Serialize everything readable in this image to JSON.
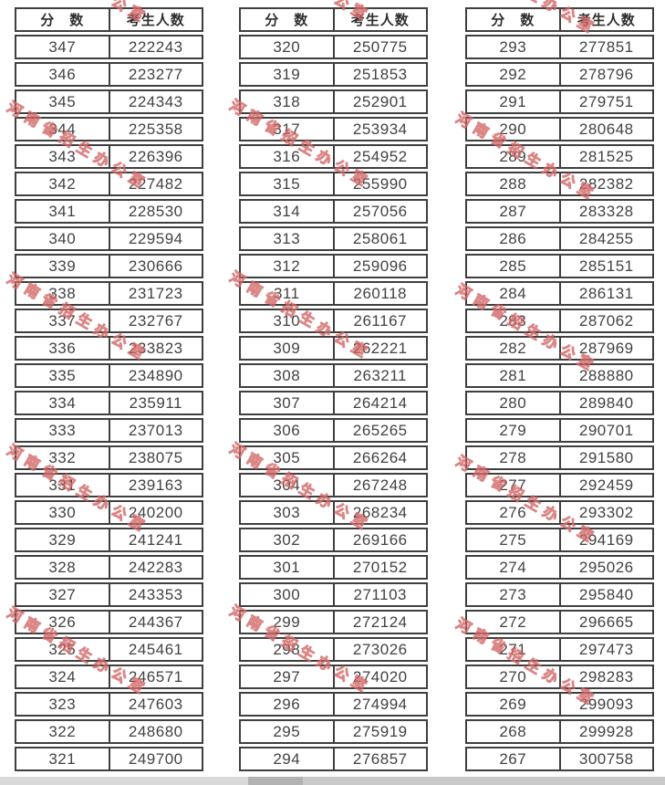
{
  "watermark": {
    "text": "河南省招生办公室"
  },
  "tables": [
    {
      "headers": {
        "score": "分　数",
        "count": "考生人数"
      },
      "rows": [
        [
          "347",
          "222243"
        ],
        [
          "346",
          "223277"
        ],
        [
          "345",
          "224343"
        ],
        [
          "344",
          "225358"
        ],
        [
          "343",
          "226396"
        ],
        [
          "342",
          "227482"
        ],
        [
          "341",
          "228530"
        ],
        [
          "340",
          "229594"
        ],
        [
          "339",
          "230666"
        ],
        [
          "338",
          "231723"
        ],
        [
          "337",
          "232767"
        ],
        [
          "336",
          "233823"
        ],
        [
          "335",
          "234890"
        ],
        [
          "334",
          "235911"
        ],
        [
          "333",
          "237013"
        ],
        [
          "332",
          "238075"
        ],
        [
          "331",
          "239163"
        ],
        [
          "330",
          "240200"
        ],
        [
          "329",
          "241241"
        ],
        [
          "328",
          "242283"
        ],
        [
          "327",
          "243353"
        ],
        [
          "326",
          "244367"
        ],
        [
          "325",
          "245461"
        ],
        [
          "324",
          "246571"
        ],
        [
          "323",
          "247603"
        ],
        [
          "322",
          "248680"
        ],
        [
          "321",
          "249700"
        ]
      ]
    },
    {
      "headers": {
        "score": "分　数",
        "count": "考生人数"
      },
      "rows": [
        [
          "320",
          "250775"
        ],
        [
          "319",
          "251853"
        ],
        [
          "318",
          "252901"
        ],
        [
          "317",
          "253934"
        ],
        [
          "316",
          "254952"
        ],
        [
          "315",
          "255990"
        ],
        [
          "314",
          "257056"
        ],
        [
          "313",
          "258061"
        ],
        [
          "312",
          "259096"
        ],
        [
          "311",
          "260118"
        ],
        [
          "310",
          "261167"
        ],
        [
          "309",
          "262221"
        ],
        [
          "308",
          "263211"
        ],
        [
          "307",
          "264214"
        ],
        [
          "306",
          "265265"
        ],
        [
          "305",
          "266264"
        ],
        [
          "304",
          "267248"
        ],
        [
          "303",
          "268234"
        ],
        [
          "302",
          "269166"
        ],
        [
          "301",
          "270152"
        ],
        [
          "300",
          "271103"
        ],
        [
          "299",
          "272124"
        ],
        [
          "298",
          "273026"
        ],
        [
          "297",
          "274020"
        ],
        [
          "296",
          "274994"
        ],
        [
          "295",
          "275919"
        ],
        [
          "294",
          "276857"
        ]
      ]
    },
    {
      "headers": {
        "score": "分　数",
        "count": "考生人数"
      },
      "rows": [
        [
          "293",
          "277851"
        ],
        [
          "292",
          "278796"
        ],
        [
          "291",
          "279751"
        ],
        [
          "290",
          "280648"
        ],
        [
          "289",
          "281525"
        ],
        [
          "288",
          "282382"
        ],
        [
          "287",
          "283328"
        ],
        [
          "286",
          "284255"
        ],
        [
          "285",
          "285151"
        ],
        [
          "284",
          "286131"
        ],
        [
          "283",
          "287062"
        ],
        [
          "282",
          "287969"
        ],
        [
          "281",
          "288880"
        ],
        [
          "280",
          "289840"
        ],
        [
          "279",
          "290701"
        ],
        [
          "278",
          "291580"
        ],
        [
          "277",
          "292459"
        ],
        [
          "276",
          "293302"
        ],
        [
          "275",
          "294169"
        ],
        [
          "274",
          "295026"
        ],
        [
          "273",
          "295840"
        ],
        [
          "272",
          "296665"
        ],
        [
          "271",
          "297473"
        ],
        [
          "270",
          "298283"
        ],
        [
          "269",
          "299093"
        ],
        [
          "268",
          "299928"
        ],
        [
          "267",
          "300758"
        ]
      ]
    }
  ]
}
